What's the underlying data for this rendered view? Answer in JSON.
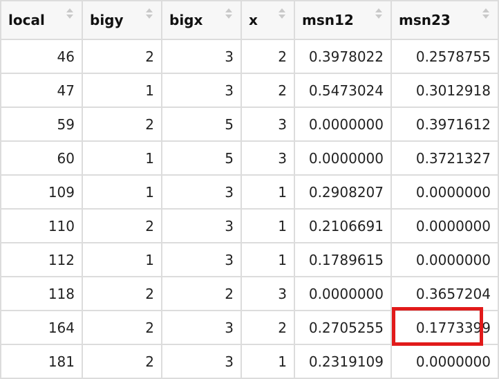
{
  "table": {
    "columns": [
      "local",
      "bigy",
      "bigx",
      "x",
      "msn12",
      "msn23"
    ],
    "rows": [
      [
        "46",
        "2",
        "3",
        "2",
        "0.3978022",
        "0.2578755"
      ],
      [
        "47",
        "1",
        "3",
        "2",
        "0.5473024",
        "0.3012918"
      ],
      [
        "59",
        "2",
        "5",
        "3",
        "0.0000000",
        "0.3971612"
      ],
      [
        "60",
        "1",
        "5",
        "3",
        "0.0000000",
        "0.3721327"
      ],
      [
        "109",
        "1",
        "3",
        "1",
        "0.2908207",
        "0.0000000"
      ],
      [
        "110",
        "2",
        "3",
        "1",
        "0.2106691",
        "0.0000000"
      ],
      [
        "112",
        "1",
        "3",
        "1",
        "0.1789615",
        "0.0000000"
      ],
      [
        "118",
        "2",
        "2",
        "3",
        "0.0000000",
        "0.3657204"
      ],
      [
        "164",
        "2",
        "3",
        "2",
        "0.2705255",
        "0.1773399"
      ],
      [
        "181",
        "2",
        "3",
        "1",
        "0.2319109",
        "0.0000000"
      ]
    ]
  },
  "icons": {
    "sort": "sort-arrows-icon"
  },
  "colors": {
    "border": "#dcdcdc",
    "header_bg": "#f7f7f7",
    "highlight": "#e11a1a"
  }
}
